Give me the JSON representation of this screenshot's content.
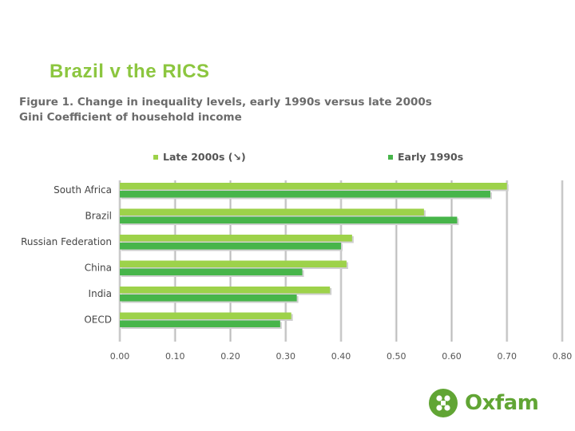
{
  "slide": {
    "title": "Brazil v the RICS",
    "figure_title_line1": "Figure 1. Change in inequality levels, early 1990s versus late 2000s",
    "figure_title_line2": "Gini Coefficient of household income"
  },
  "brand": {
    "name": "Oxfam",
    "green": "#61a534"
  },
  "colors": {
    "title": "#8cc63f",
    "late_series": "#9dd24a",
    "early_series": "#47b54a",
    "figure_text": "#6b6b6b",
    "grid": "#bdbdbd"
  },
  "chart_data": {
    "type": "bar",
    "orientation": "horizontal",
    "categories": [
      "South Africa",
      "Brazil",
      "Russian Federation",
      "China",
      "India",
      "OECD"
    ],
    "series": [
      {
        "name": "Late 2000s (↘)",
        "values": [
          0.7,
          0.55,
          0.42,
          0.41,
          0.38,
          0.31
        ]
      },
      {
        "name": "Early 1990s",
        "values": [
          0.67,
          0.61,
          0.4,
          0.33,
          0.32,
          0.29
        ]
      }
    ],
    "x_ticks": [
      "0.00",
      "0.10",
      "0.20",
      "0.30",
      "0.40",
      "0.50",
      "0.60",
      "0.70",
      "0.80"
    ],
    "xlim": [
      0,
      0.8
    ],
    "grid": true,
    "legend_position": "top"
  }
}
